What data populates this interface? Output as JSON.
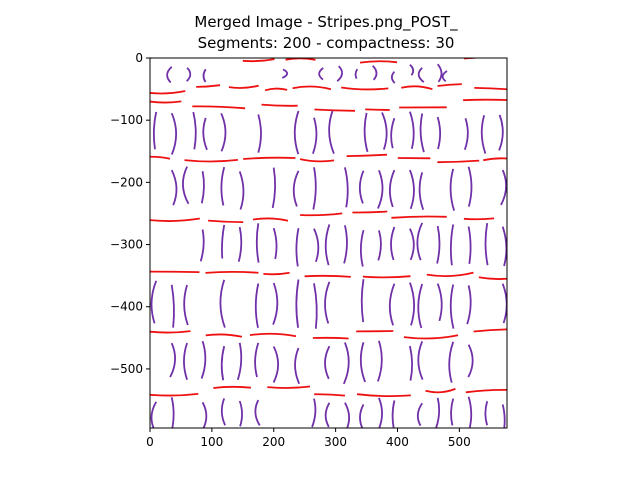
{
  "chart_data": {
    "type": "image",
    "title_line1": "Merged Image - Stripes.png_POST_",
    "title_line2": "Segments: 200 - compactness: 30",
    "xlabel": "",
    "ylabel": "",
    "xlim": [
      0,
      577
    ],
    "ylim": [
      -595,
      0
    ],
    "x_ticks": [
      0,
      100,
      200,
      300,
      400,
      500
    ],
    "y_ticks": [
      0,
      -100,
      -200,
      -300,
      -400,
      -500
    ],
    "x_tick_labels": [
      "0",
      "100",
      "200",
      "300",
      "400",
      "500"
    ],
    "y_tick_labels": [
      "0",
      "−100",
      "−200",
      "−300",
      "−400",
      "−500"
    ],
    "grid": false,
    "colors": {
      "horizontal_stroke": "#ee1111",
      "vertical_stroke": "#7030a8",
      "axes": "#000000",
      "background": "#ffffff"
    },
    "rows": [
      {
        "h": 0,
        "v": [
          35,
          90,
          190,
          280,
          320,
          335,
          395,
          440,
          480,
          535
        ]
      },
      {
        "h": -50,
        "v": []
      },
      {
        "h": -75,
        "v": [
          10,
          45,
          90,
          150,
          240,
          295,
          350,
          395,
          440,
          485,
          540
        ]
      },
      {
        "h": -165,
        "v": [
          10,
          60,
          120,
          175,
          240,
          290,
          345,
          395,
          440,
          490,
          545
        ]
      },
      {
        "h": -255,
        "v": [
          10,
          60,
          120,
          175,
          240,
          290,
          345,
          395,
          440,
          490,
          545
        ]
      },
      {
        "h": -345,
        "v": [
          10,
          60,
          120,
          175,
          240,
          290,
          345,
          395,
          440,
          490,
          545
        ]
      },
      {
        "h": -445,
        "v": [
          10,
          60,
          120,
          175,
          240,
          290,
          345,
          395,
          440,
          490,
          545
        ]
      },
      {
        "h": -535,
        "v": [
          10,
          60,
          120,
          175,
          240,
          290,
          345,
          395,
          440,
          490,
          545
        ]
      }
    ]
  }
}
